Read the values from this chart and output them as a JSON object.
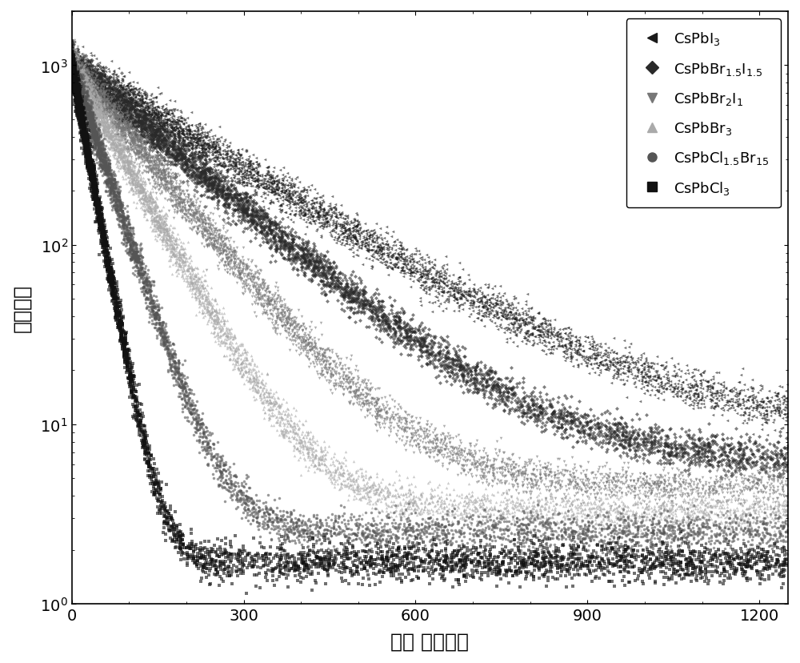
{
  "series": [
    {
      "label": "CsPbI$_3$",
      "color": "#1a1a1a",
      "marker": "<",
      "tau": 220,
      "baseline": 8.5,
      "markersize": 2.5
    },
    {
      "label": "CsPbBr$_{1.5}$I$_{1.5}$",
      "color": "#2a2a2a",
      "marker": "D",
      "tau": 160,
      "baseline": 6.0,
      "markersize": 2.5
    },
    {
      "label": "CsPbBr$_2$I$_1$",
      "color": "#777777",
      "marker": "v",
      "tau": 110,
      "baseline": 4.5,
      "markersize": 2.5
    },
    {
      "label": "CsPbBr$_3$",
      "color": "#aaaaaa",
      "marker": "^",
      "tau": 75,
      "baseline": 3.3,
      "markersize": 2.5
    },
    {
      "label": "CsPbCl$_{1.5}$Br$_{15}$",
      "color": "#555555",
      "marker": "o",
      "tau": 45,
      "baseline": 2.5,
      "markersize": 2.5
    },
    {
      "label": "CsPbCl$_3$",
      "color": "#111111",
      "marker": "s",
      "tau": 25,
      "baseline": 1.7,
      "markersize": 2.5
    }
  ],
  "xlim": [
    0,
    1250
  ],
  "ylim_log": [
    1.0,
    2000
  ],
  "xlabel": "时间 （纳秒）",
  "ylabel": "荧光强度",
  "n_points": 5000,
  "background_color": "#ffffff"
}
